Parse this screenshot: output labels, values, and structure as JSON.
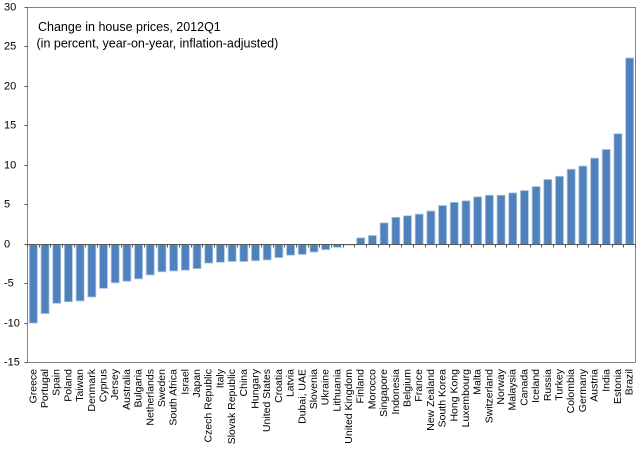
{
  "chart_data": {
    "type": "bar",
    "title": "Change in house prices, 2012Q1",
    "subtitle": "(in percent, year-on-year, inflation-adjusted)",
    "xlabel": "",
    "ylabel": "",
    "ylim": [
      -15,
      30
    ],
    "yticks": [
      30,
      25,
      20,
      15,
      10,
      5,
      0,
      -5,
      -10,
      -15
    ],
    "grid": false,
    "legend_position": "none",
    "bar_color": "#4F81BD",
    "bar_edge_color": "#AEC7E2",
    "axis_color": "#595959",
    "border_color": "#848484",
    "text_color": "#000000",
    "categories": [
      "Greece",
      "Portugal",
      "Spain",
      "Poland",
      "Taiwan",
      "Denmark",
      "Cyprus",
      "Jersey",
      "Australia",
      "Bulgaria",
      "Netherlands",
      "Sweden",
      "South Africa",
      "Israel",
      "Japan",
      "Czech Republic",
      "Italy",
      "Slovak Republic",
      "China",
      "Hungary",
      "United States",
      "Croatia",
      "Latvia",
      "Dubai, UAE",
      "Slovenia",
      "Ukraine",
      "Lithuania",
      "United Kingdom",
      "Finland",
      "Morocco",
      "Singapore",
      "Indonesia",
      "Belgium",
      "France",
      "New Zealand",
      "South Korea",
      "Hong Kong",
      "Luxembourg",
      "Malta",
      "Switzerland",
      "Norway",
      "Malaysia",
      "Canada",
      "Iceland",
      "Russia",
      "Turkey",
      "Colombia",
      "Germany",
      "Austria",
      "India",
      "Estonia",
      "Brazil"
    ],
    "values": [
      -10.0,
      -8.8,
      -7.5,
      -7.3,
      -7.2,
      -6.7,
      -5.6,
      -4.9,
      -4.7,
      -4.4,
      -3.9,
      -3.5,
      -3.4,
      -3.3,
      -3.1,
      -2.4,
      -2.3,
      -2.2,
      -2.2,
      -2.1,
      -2.0,
      -1.7,
      -1.4,
      -1.3,
      -1.0,
      -0.7,
      -0.4,
      -0.1,
      0.8,
      1.1,
      2.7,
      3.4,
      3.6,
      3.8,
      4.2,
      4.9,
      5.3,
      5.5,
      6.0,
      6.2,
      6.2,
      6.5,
      6.8,
      7.3,
      8.2,
      8.6,
      9.5,
      9.9,
      10.9,
      12.0,
      14.0,
      23.6
    ]
  }
}
